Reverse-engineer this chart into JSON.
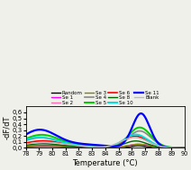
{
  "xlabel": "Temperature (°C)",
  "ylabel": "-dF/dT",
  "xlim": [
    78,
    90
  ],
  "ylim": [
    0.0,
    0.7
  ],
  "yticks": [
    0.0,
    0.1,
    0.2,
    0.3,
    0.4,
    0.5,
    0.6
  ],
  "ytick_labels": [
    "0,0",
    "0,1",
    "0,2",
    "0,3",
    "0,4",
    "0,5",
    "0,6"
  ],
  "xticks": [
    78,
    79,
    80,
    81,
    82,
    83,
    84,
    85,
    86,
    87,
    88,
    89,
    90
  ],
  "series": {
    "Random": {
      "color": "#000000",
      "lw": 1.0
    },
    "Se 1": {
      "color": "#ff00ff",
      "lw": 1.0
    },
    "Se 2": {
      "color": "#ff69b4",
      "lw": 1.0
    },
    "Se 3": {
      "color": "#808000",
      "lw": 1.0
    },
    "Se 4": {
      "color": "#888888",
      "lw": 1.2
    },
    "Se 5": {
      "color": "#00cc00",
      "lw": 1.4
    },
    "Se 6": {
      "color": "#ff0000",
      "lw": 1.2
    },
    "Se 8": {
      "color": "#006400",
      "lw": 1.0
    },
    "Se 10": {
      "color": "#00dddd",
      "lw": 1.4
    },
    "Se 11": {
      "color": "#0000ff",
      "lw": 1.6
    },
    "Blank": {
      "color": "#bbbbbb",
      "lw": 1.0
    }
  },
  "legend_order": [
    "Random",
    "Se 1",
    "Se 2",
    "Se 3",
    "Se 4",
    "Se 5",
    "Se 6",
    "Se 8",
    "Se 10",
    "Se 11",
    "Blank"
  ]
}
